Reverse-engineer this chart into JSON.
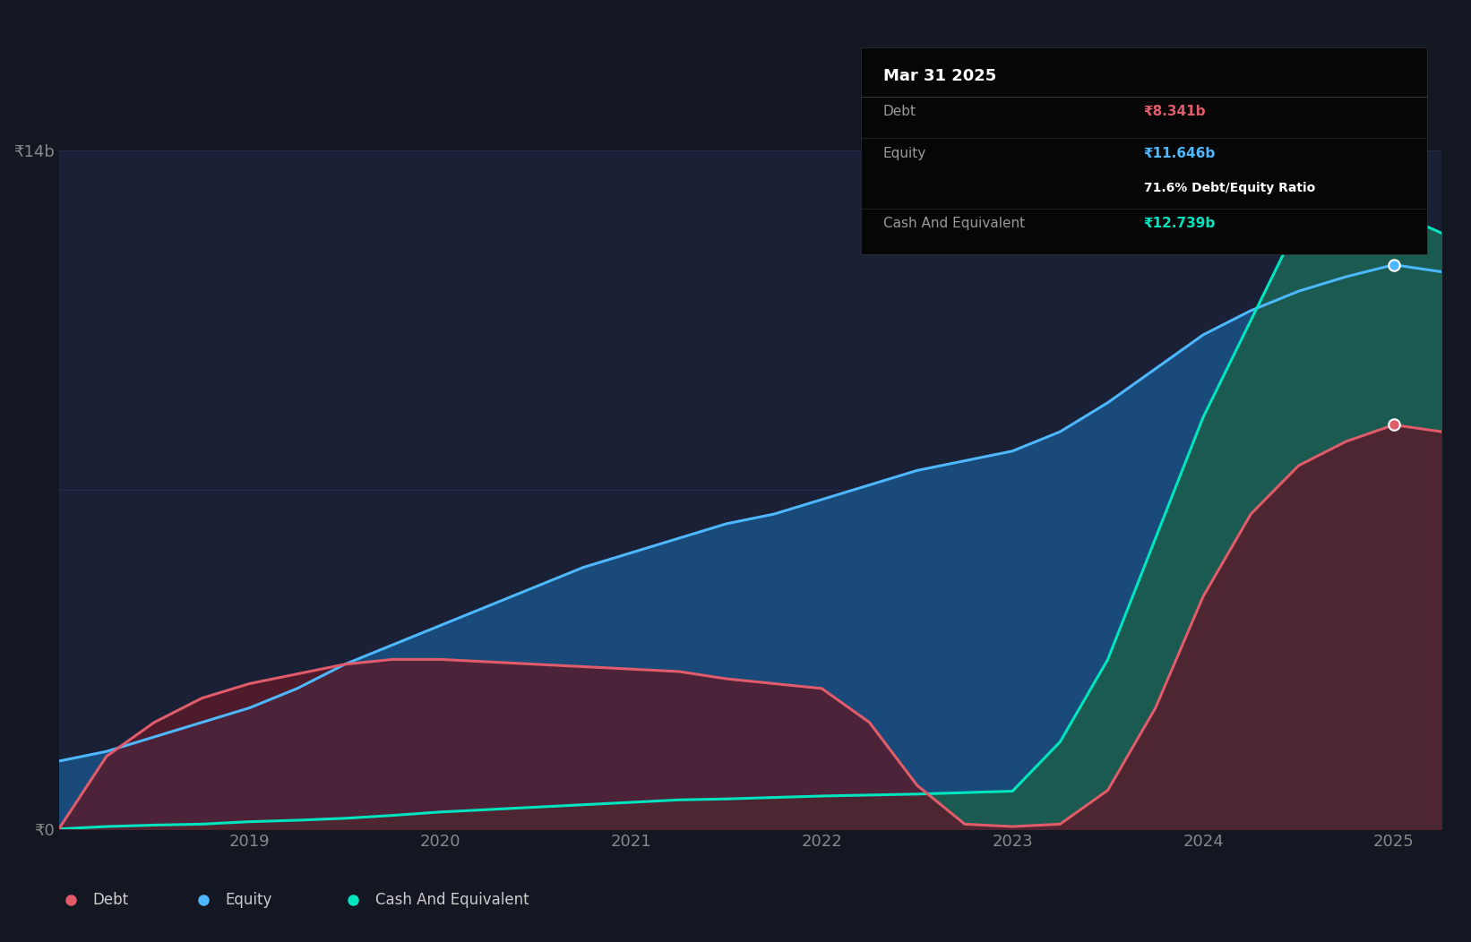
{
  "bg_color": "#131722",
  "plot_bg_color": "#131722",
  "chart_area_color": "#1a2035",
  "grid_color": "#2a3050",
  "years": [
    2018.0,
    2018.25,
    2018.5,
    2018.75,
    2019.0,
    2019.25,
    2019.5,
    2019.75,
    2020.0,
    2020.25,
    2020.5,
    2020.75,
    2021.0,
    2021.25,
    2021.5,
    2021.75,
    2022.0,
    2022.25,
    2022.5,
    2022.75,
    2023.0,
    2023.25,
    2023.5,
    2023.75,
    2024.0,
    2024.25,
    2024.5,
    2024.75,
    2025.0,
    2025.25
  ],
  "debt": [
    0.0,
    1.5,
    2.2,
    2.7,
    3.0,
    3.2,
    3.4,
    3.5,
    3.5,
    3.45,
    3.4,
    3.35,
    3.3,
    3.25,
    3.1,
    3.0,
    2.9,
    2.2,
    0.9,
    0.1,
    0.05,
    0.1,
    0.8,
    2.5,
    4.8,
    6.5,
    7.5,
    8.0,
    8.341,
    8.2
  ],
  "equity": [
    1.4,
    1.6,
    1.9,
    2.2,
    2.5,
    2.9,
    3.4,
    3.8,
    4.2,
    4.6,
    5.0,
    5.4,
    5.7,
    6.0,
    6.3,
    6.5,
    6.8,
    7.1,
    7.4,
    7.6,
    7.8,
    8.2,
    8.8,
    9.5,
    10.2,
    10.7,
    11.1,
    11.4,
    11.646,
    11.5
  ],
  "cash": [
    0.0,
    0.05,
    0.08,
    0.1,
    0.15,
    0.18,
    0.22,
    0.28,
    0.35,
    0.4,
    0.45,
    0.5,
    0.55,
    0.6,
    0.62,
    0.65,
    0.68,
    0.7,
    0.72,
    0.75,
    0.78,
    1.8,
    3.5,
    6.0,
    8.5,
    10.5,
    12.5,
    13.5,
    12.739,
    12.3
  ],
  "debt_color": "#e05c6a",
  "equity_color": "#4db8ff",
  "cash_color": "#00e5c0",
  "equity_fill_color": "#1a4a7a",
  "cash_fill_color": "#1a5a50",
  "debt_fill_color": "#5a1a2a",
  "xtick_years": [
    2019,
    2020,
    2021,
    2022,
    2023,
    2024,
    2025
  ],
  "ylim_max": 14.0,
  "ytick_labels": [
    "₹0",
    "₹14b"
  ],
  "tooltip_title": "Mar 31 2025",
  "tooltip_debt_label": "Debt",
  "tooltip_debt_value": "₹8.341b",
  "tooltip_equity_label": "Equity",
  "tooltip_equity_value": "₹11.646b",
  "tooltip_ratio": "71.6% Debt/Equity Ratio",
  "tooltip_cash_label": "Cash And Equivalent",
  "tooltip_cash_value": "₹12.739b",
  "legend_items": [
    "Debt",
    "Equity",
    "Cash And Equivalent"
  ],
  "legend_colors": [
    "#e05c6a",
    "#4db8ff",
    "#00e5c0"
  ]
}
